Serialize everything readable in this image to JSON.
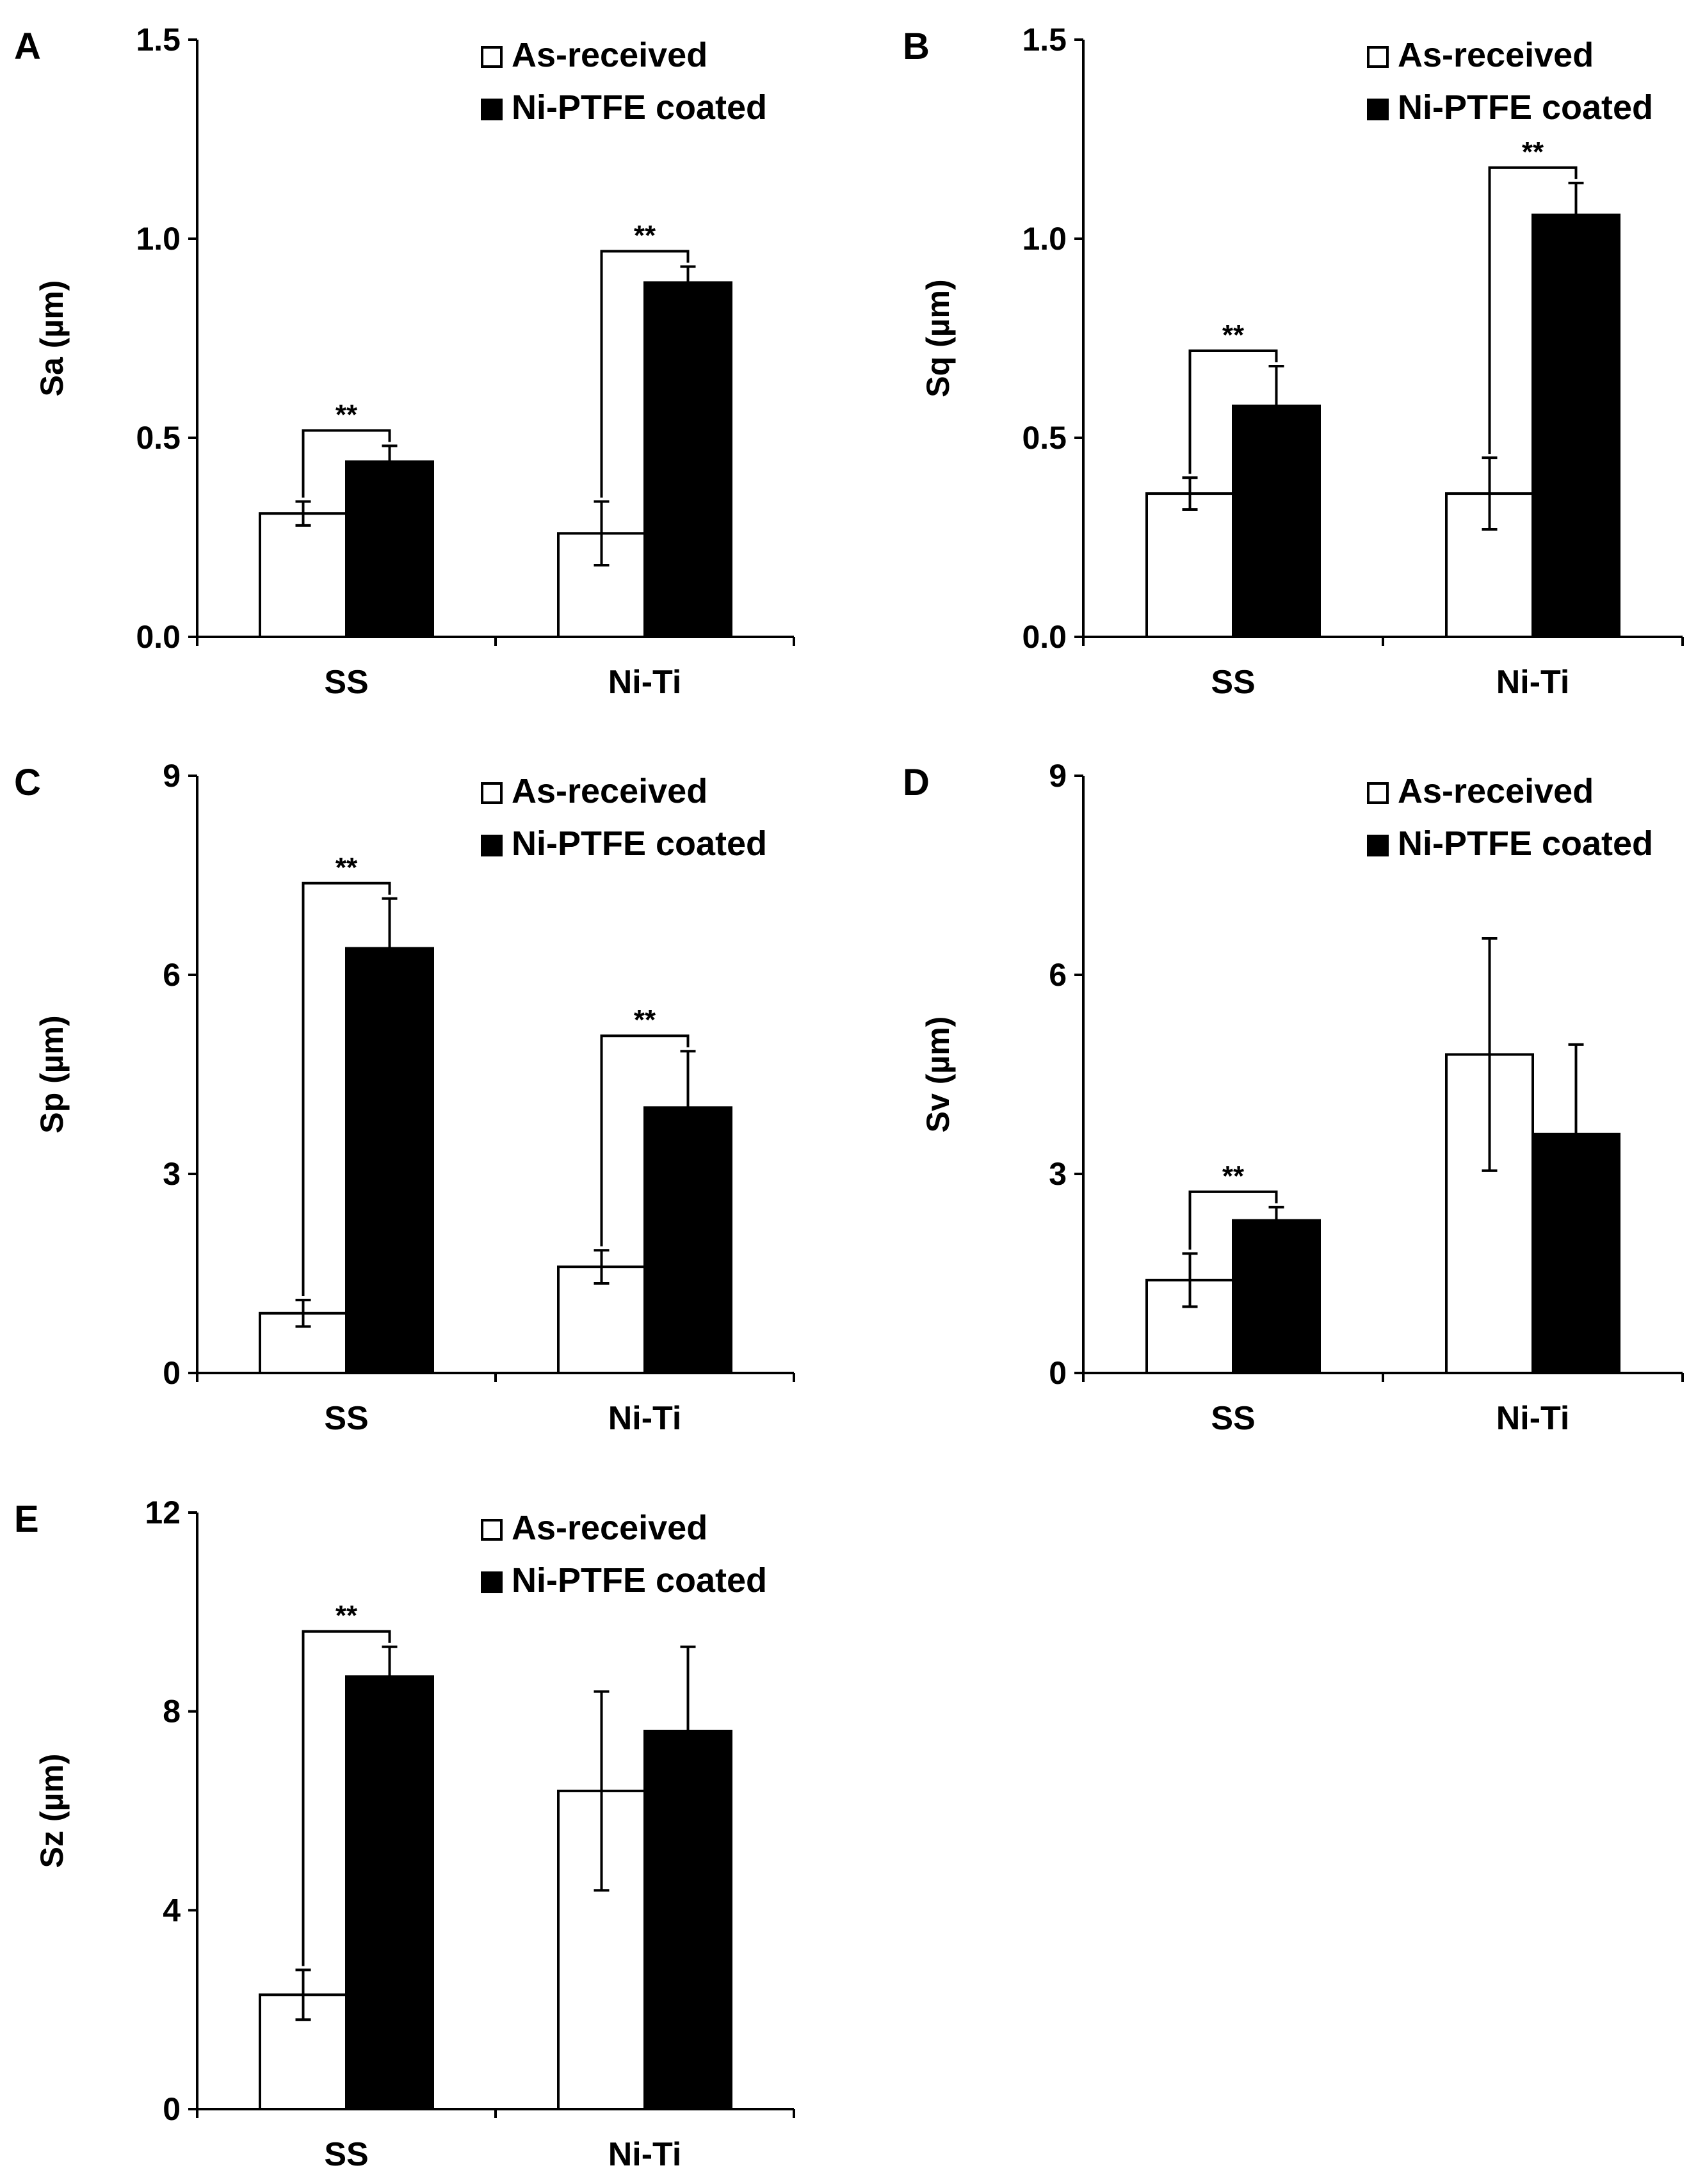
{
  "figure": {
    "panels_count": 5
  },
  "chart_data": [
    {
      "type": "bar",
      "panel_label": "A",
      "categories": [
        "SS",
        "Ni-Ti"
      ],
      "series": [
        {
          "name": "As-received",
          "color": "#ffffff",
          "values": [
            0.31,
            0.26
          ],
          "errors": [
            0.03,
            0.08
          ]
        },
        {
          "name": "Ni-PTFE coated",
          "color": "#000000",
          "values": [
            0.44,
            0.89
          ],
          "errors": [
            0.04,
            0.04
          ]
        }
      ],
      "ylabel": "Sa (µm)",
      "ylim": [
        0,
        1.5
      ],
      "yticks": [
        0.0,
        0.5,
        1.0,
        1.5
      ],
      "ytick_labels": [
        "0.0",
        "0.5",
        "1.0",
        "1.5"
      ],
      "legend": [
        "As-received",
        "Ni-PTFE coated"
      ],
      "legend_position": "top-right",
      "significance": [
        {
          "category": "SS",
          "label": "**"
        },
        {
          "category": "Ni-Ti",
          "label": "**"
        }
      ]
    },
    {
      "type": "bar",
      "panel_label": "B",
      "categories": [
        "SS",
        "Ni-Ti"
      ],
      "series": [
        {
          "name": "As-received",
          "color": "#ffffff",
          "values": [
            0.36,
            0.36
          ],
          "errors": [
            0.04,
            0.09
          ]
        },
        {
          "name": "Ni-PTFE coated",
          "color": "#000000",
          "values": [
            0.58,
            1.06
          ],
          "errors": [
            0.1,
            0.08
          ]
        }
      ],
      "ylabel": "Sq (µm)",
      "ylim": [
        0,
        1.5
      ],
      "yticks": [
        0.0,
        0.5,
        1.0,
        1.5
      ],
      "ytick_labels": [
        "0.0",
        "0.5",
        "1.0",
        "1.5"
      ],
      "legend": [
        "As-received",
        "Ni-PTFE coated"
      ],
      "legend_position": "top-right",
      "significance": [
        {
          "category": "SS",
          "label": "**"
        },
        {
          "category": "Ni-Ti",
          "label": "**"
        }
      ]
    },
    {
      "type": "bar",
      "panel_label": "C",
      "categories": [
        "SS",
        "Ni-Ti"
      ],
      "series": [
        {
          "name": "As-received",
          "color": "#ffffff",
          "values": [
            0.9,
            1.6
          ],
          "errors": [
            0.2,
            0.25
          ]
        },
        {
          "name": "Ni-PTFE coated",
          "color": "#000000",
          "values": [
            6.4,
            4.0
          ],
          "errors": [
            0.75,
            0.85
          ]
        }
      ],
      "ylabel": "Sp (µm)",
      "ylim": [
        0,
        9
      ],
      "yticks": [
        0,
        3,
        6,
        9
      ],
      "ytick_labels": [
        "0",
        "3",
        "6",
        "9"
      ],
      "legend": [
        "As-received",
        "Ni-PTFE coated"
      ],
      "legend_position": "top-right",
      "significance": [
        {
          "category": "SS",
          "label": "**"
        },
        {
          "category": "Ni-Ti",
          "label": "**"
        }
      ]
    },
    {
      "type": "bar",
      "panel_label": "D",
      "categories": [
        "SS",
        "Ni-Ti"
      ],
      "series": [
        {
          "name": "As-received",
          "color": "#ffffff",
          "values": [
            1.4,
            4.8
          ],
          "errors": [
            0.4,
            1.75
          ]
        },
        {
          "name": "Ni-PTFE coated",
          "color": "#000000",
          "values": [
            2.3,
            3.6
          ],
          "errors": [
            0.2,
            1.35
          ]
        }
      ],
      "ylabel": "Sv (µm)",
      "ylim": [
        0,
        9
      ],
      "yticks": [
        0,
        3,
        6,
        9
      ],
      "ytick_labels": [
        "0",
        "3",
        "6",
        "9"
      ],
      "legend": [
        "As-received",
        "Ni-PTFE coated"
      ],
      "legend_position": "top-right",
      "significance": [
        {
          "category": "SS",
          "label": "**"
        }
      ]
    },
    {
      "type": "bar",
      "panel_label": "E",
      "categories": [
        "SS",
        "Ni-Ti"
      ],
      "series": [
        {
          "name": "As-received",
          "color": "#ffffff",
          "values": [
            2.3,
            6.4
          ],
          "errors": [
            0.5,
            2.0
          ]
        },
        {
          "name": "Ni-PTFE coated",
          "color": "#000000",
          "values": [
            8.7,
            7.6
          ],
          "errors": [
            0.6,
            1.7
          ]
        }
      ],
      "ylabel": "Sz (µm)",
      "ylim": [
        0,
        12
      ],
      "yticks": [
        0,
        4,
        8,
        12
      ],
      "ytick_labels": [
        "0",
        "4",
        "8",
        "12"
      ],
      "legend": [
        "As-received",
        "Ni-PTFE coated"
      ],
      "legend_position": "top-right",
      "significance": [
        {
          "category": "SS",
          "label": "**"
        }
      ]
    }
  ]
}
